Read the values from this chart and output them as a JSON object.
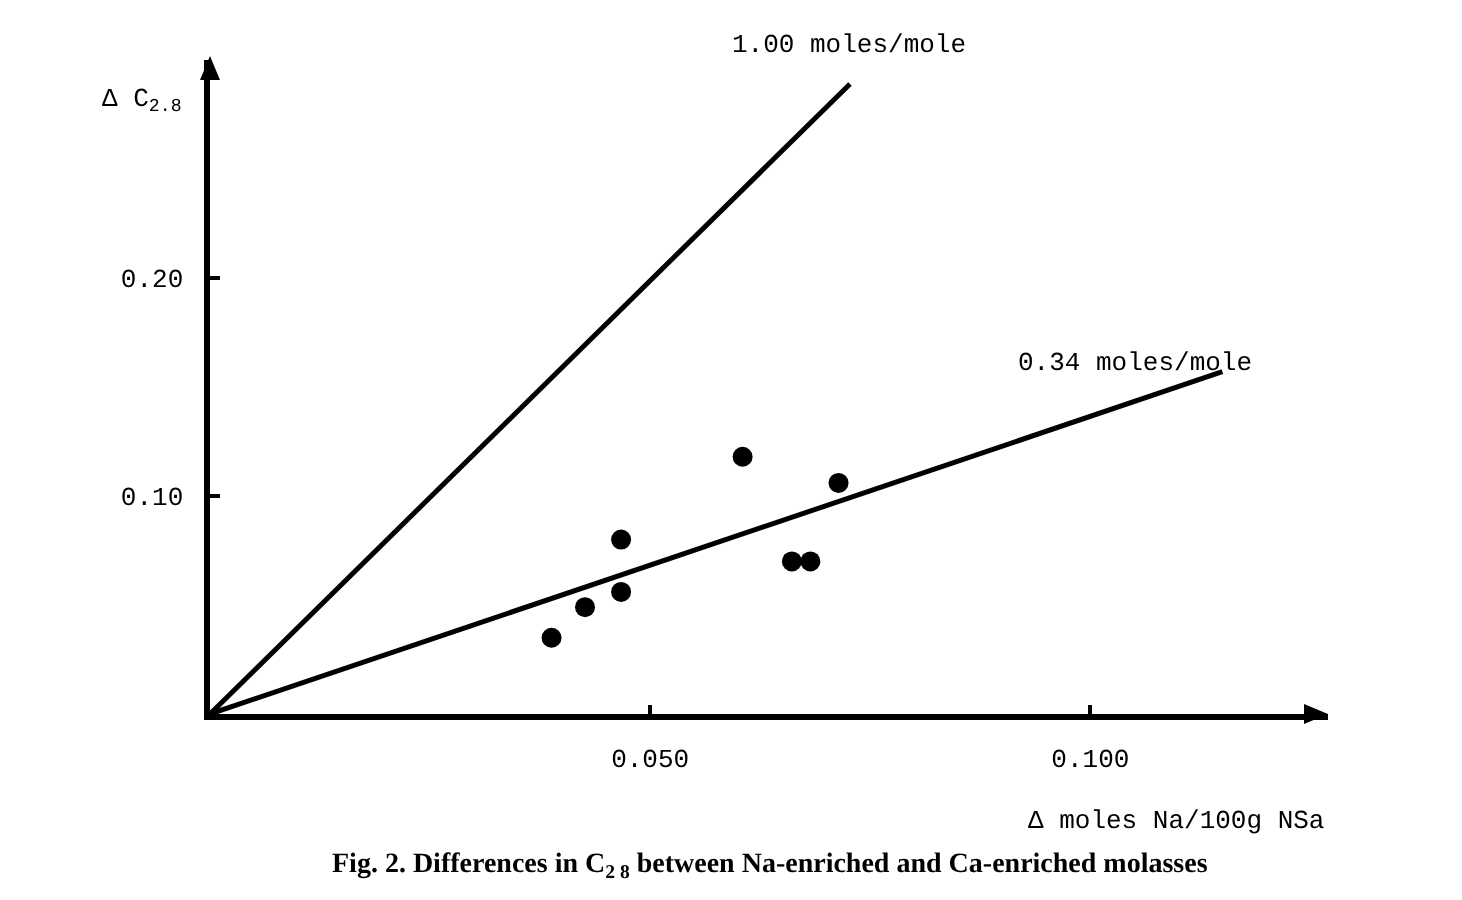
{
  "chart_data": {
    "type": "scatter",
    "title": "Fig. 2. Differences in C$_{2 8}$ between Na-enriched and Ca-enriched molasses",
    "xlabel": "Δ moles Na/100g NSa",
    "ylabel": "Δ C$_{2.8}$",
    "x": [
      0.0388,
      0.0426,
      0.0467,
      0.0467,
      0.0605,
      0.0661,
      0.0682,
      0.0714
    ],
    "series": [
      {
        "marker": "circle",
        "color": "#000000",
        "values": [
          0.035,
          0.049,
          0.056,
          0.08,
          0.118,
          0.07,
          0.07,
          0.106
        ]
      },
      {
        "type": "line",
        "color": "#000000",
        "x": [
          0,
          0.0727
        ],
        "values": [
          0,
          0.289
        ]
      },
      {
        "type": "line",
        "color": "#000000",
        "x": [
          0,
          0.115
        ],
        "values": [
          0,
          0.157
        ]
      }
    ],
    "annotations": [
      {
        "text": "1.00 moles/mole",
        "x": 0.0727,
        "y": 0.289
      },
      {
        "text": "0.34 moles/mole",
        "x": 0.105,
        "y": 0.143
      }
    ],
    "xlim": [
      0,
      0.127
    ],
    "ylim": [
      0,
      0.3
    ],
    "xticks": [
      {
        "value": 0.05,
        "label": "0.050"
      },
      {
        "value": 0.1,
        "label": "0.100"
      }
    ],
    "yticks": [
      {
        "value": 0.1,
        "label": "0.10"
      },
      {
        "value": 0.2,
        "label": "0.20"
      }
    ],
    "grid": false,
    "legend": false
  }
}
